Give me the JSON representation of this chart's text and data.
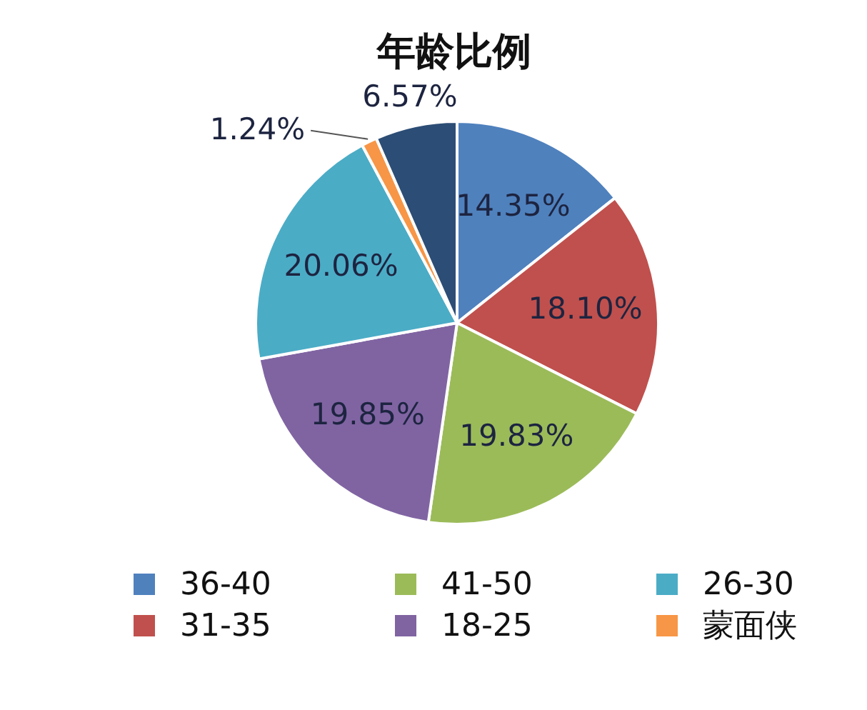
{
  "chart_data": {
    "type": "pie",
    "title": "年龄比例",
    "categories": [
      "36-40",
      "31-35",
      "41-50",
      "18-25",
      "26-30",
      "蒙面侠",
      null
    ],
    "values": [
      14.35,
      18.1,
      19.83,
      19.85,
      20.06,
      1.24,
      6.57
    ],
    "colors": [
      "#4f81bd",
      "#c0504d",
      "#9bbb59",
      "#8064a2",
      "#4bacc6",
      "#f79646",
      "#2c4d75"
    ],
    "value_labels": [
      "14.35%",
      "18.10%",
      "19.83%",
      "19.85%",
      "20.06%",
      "1.24%",
      "6.57%"
    ],
    "legend": "bottom"
  }
}
